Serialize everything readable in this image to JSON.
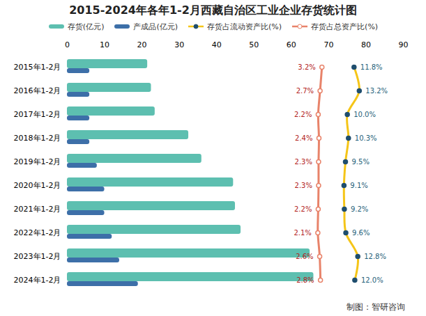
{
  "chart_data": {
    "type": "bar",
    "orientation": "horizontal",
    "title": "2015-2024年各年1-2月西藏自治区工业企业存货统计图",
    "caption": "制图：智研咨询",
    "categories": [
      "2015年1-2月",
      "2016年1-2月",
      "2017年1-2月",
      "2018年1-2月",
      "2019年1-2月",
      "2020年1-2月",
      "2021年1-2月",
      "2022年1-2月",
      "2023年1-2月",
      "2024年1-2月"
    ],
    "xlim": [
      0,
      90
    ],
    "xticks": [
      0,
      10,
      20,
      30,
      40,
      50,
      60,
      70,
      80,
      90
    ],
    "x2lim": [
      -65,
      25
    ],
    "x2ticks": [],
    "series": [
      {
        "name": "存货(亿元)",
        "type": "bar",
        "color": "#5dbfb0",
        "values": [
          21.5,
          22.5,
          23.5,
          32.5,
          36,
          44.5,
          45,
          46.5,
          65,
          66
        ]
      },
      {
        "name": "产成品(亿元)",
        "type": "bar",
        "color": "#3d6fa8",
        "values": [
          6,
          6,
          6,
          6,
          8,
          10,
          10,
          12,
          14,
          19
        ]
      },
      {
        "name": "存货占流动资产比(%)",
        "type": "line",
        "axis": "x2",
        "color": "#f5c518",
        "marker": "circle",
        "data_labels": true,
        "values": [
          11.8,
          13.2,
          10.0,
          10.3,
          9.5,
          9.1,
          9.2,
          9.6,
          12.8,
          12.0
        ],
        "value_labels": [
          "11.8%",
          "13.2%",
          "10.0%",
          "10.3%",
          "9.5%",
          "9.1%",
          "9.2%",
          "9.6%",
          "12.8%",
          "12.0%"
        ]
      },
      {
        "name": "存货占总资产比(%)",
        "type": "line",
        "axis": "x2",
        "color": "#e8836a",
        "marker": "circle",
        "data_labels": true,
        "values": [
          3.2,
          2.7,
          2.2,
          2.4,
          2.3,
          2.3,
          2.2,
          2.1,
          2.6,
          2.8
        ],
        "value_labels": [
          "3.2%",
          "2.7%",
          "2.2%",
          "2.4%",
          "2.3%",
          "2.3%",
          "2.2%",
          "2.1%",
          "2.6%",
          "2.8%"
        ]
      }
    ]
  }
}
